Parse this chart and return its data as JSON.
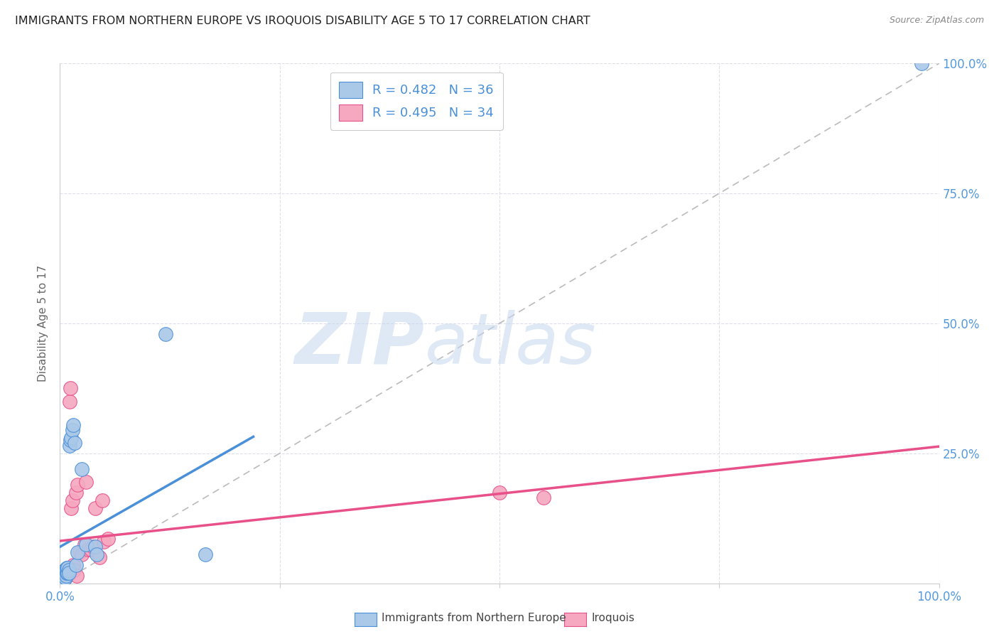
{
  "title": "IMMIGRANTS FROM NORTHERN EUROPE VS IROQUOIS DISABILITY AGE 5 TO 17 CORRELATION CHART",
  "source": "Source: ZipAtlas.com",
  "ylabel": "Disability Age 5 to 17",
  "legend_label1": "Immigrants from Northern Europe",
  "legend_label2": "Iroquois",
  "R1": 0.482,
  "N1": 36,
  "R2": 0.495,
  "N2": 34,
  "color1": "#aac8e8",
  "color2": "#f5a8c0",
  "line_color1": "#4a90d9",
  "line_color2": "#e8508a",
  "diag_color": "#bbbbbb",
  "background_color": "#ffffff",
  "grid_color": "#dde0ea",
  "title_color": "#222222",
  "source_color": "#888888",
  "ylabel_color": "#666666",
  "axis_tick_color": "#5599dd",
  "xlim": [
    0.0,
    1.0
  ],
  "ylim": [
    0.0,
    1.0
  ],
  "blue_x": [
    0.001,
    0.001,
    0.002,
    0.002,
    0.002,
    0.003,
    0.003,
    0.004,
    0.004,
    0.005,
    0.005,
    0.006,
    0.006,
    0.007,
    0.007,
    0.008,
    0.008,
    0.009,
    0.009,
    0.01,
    0.01,
    0.011,
    0.012,
    0.013,
    0.014,
    0.015,
    0.017,
    0.018,
    0.02,
    0.025,
    0.03,
    0.04,
    0.042,
    0.12,
    0.165,
    0.98
  ],
  "blue_y": [
    0.005,
    0.01,
    0.008,
    0.012,
    0.015,
    0.01,
    0.015,
    0.008,
    0.02,
    0.015,
    0.025,
    0.01,
    0.02,
    0.015,
    0.025,
    0.02,
    0.03,
    0.02,
    0.03,
    0.025,
    0.02,
    0.265,
    0.275,
    0.28,
    0.295,
    0.305,
    0.27,
    0.035,
    0.06,
    0.22,
    0.075,
    0.07,
    0.055,
    0.48,
    0.055,
    1.0
  ],
  "pink_x": [
    0.001,
    0.001,
    0.002,
    0.003,
    0.004,
    0.005,
    0.006,
    0.007,
    0.008,
    0.009,
    0.01,
    0.011,
    0.012,
    0.013,
    0.014,
    0.015,
    0.016,
    0.018,
    0.019,
    0.02,
    0.022,
    0.025,
    0.028,
    0.03,
    0.032,
    0.035,
    0.038,
    0.04,
    0.045,
    0.048,
    0.05,
    0.055,
    0.5,
    0.55
  ],
  "pink_y": [
    0.005,
    0.01,
    0.015,
    0.008,
    0.015,
    0.02,
    0.01,
    0.015,
    0.02,
    0.025,
    0.018,
    0.35,
    0.375,
    0.145,
    0.16,
    0.035,
    0.025,
    0.175,
    0.015,
    0.19,
    0.06,
    0.055,
    0.075,
    0.195,
    0.065,
    0.065,
    0.07,
    0.145,
    0.05,
    0.16,
    0.08,
    0.085,
    0.175,
    0.165
  ],
  "blue_reg_xlim": [
    0.0,
    0.22
  ],
  "pink_reg_xlim": [
    0.0,
    1.0
  ],
  "watermark_zip_color": "#c5d8ee",
  "watermark_atlas_color": "#c5d8ee"
}
